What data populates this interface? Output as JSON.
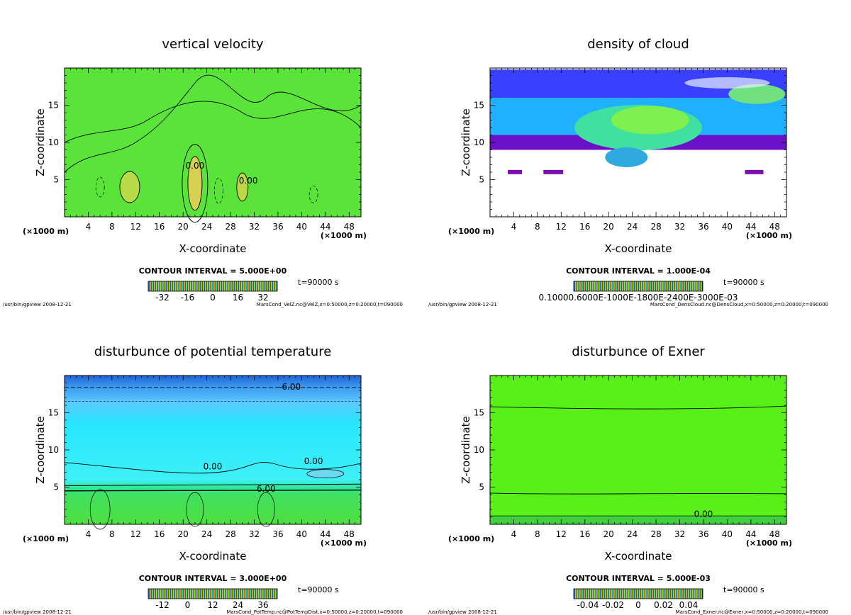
{
  "chart_data": [
    {
      "type": "heatmap",
      "title": "vertical velocity",
      "xlabel": "X-coordinate",
      "ylabel": "Z-coordinate",
      "x_unit": "(×1000 m)",
      "xlim": [
        0,
        50
      ],
      "ylim": [
        0,
        20
      ],
      "x_ticks": [
        4,
        8,
        12,
        16,
        20,
        24,
        28,
        32,
        36,
        40,
        44,
        48
      ],
      "y_ticks": [
        5,
        10,
        15
      ],
      "contour_interval": "CONTOUR INTERVAL = 5.000E+00",
      "time": "t=90000 s",
      "colorbar_ticks": [
        "-32",
        "-16",
        "0",
        "16",
        "32"
      ],
      "contour_labels": [
        "0.00",
        "0.00"
      ],
      "footer_left": "/usr/bin/gpview  2008-12-21",
      "footer_right": "MarsCond_VelZ.nc@VelZ,x=0:50000,z=0:20000,t=090000"
    },
    {
      "type": "heatmap",
      "title": "density of cloud",
      "xlabel": "X-coordinate",
      "ylabel": "Z-coordinate",
      "x_unit": "(×1000 m)",
      "xlim": [
        0,
        50
      ],
      "ylim": [
        0,
        20
      ],
      "x_ticks": [
        4,
        8,
        12,
        16,
        20,
        24,
        28,
        32,
        36,
        40,
        44,
        48
      ],
      "y_ticks": [
        5,
        10,
        15
      ],
      "contour_interval": "CONTOUR INTERVAL = 1.000E-04",
      "time": "t=90000 s",
      "colorbar_ticks": [
        "0.10000.6000E-1000E-1800E-2400E-3000E-03"
      ],
      "contour_labels": [],
      "footer_left": "/usr/bin/gpview  2008-12-21",
      "footer_right": "MarsCond_DensCloud.nc@DensCloud,x=0:50000,z=0:20000,t=090000"
    },
    {
      "type": "heatmap",
      "title": "disturbunce of potential temperature",
      "xlabel": "X-coordinate",
      "ylabel": "Z-coordinate",
      "x_unit": "(×1000 m)",
      "xlim": [
        0,
        50
      ],
      "ylim": [
        0,
        20
      ],
      "x_ticks": [
        4,
        8,
        12,
        16,
        20,
        24,
        28,
        32,
        36,
        40,
        44,
        48
      ],
      "y_ticks": [
        5,
        10,
        15
      ],
      "contour_interval": "CONTOUR INTERVAL = 3.000E+00",
      "time": "t=90000 s",
      "colorbar_ticks": [
        "-12",
        "0",
        "12",
        "24",
        "36"
      ],
      "contour_labels": [
        "-6.00",
        "0.00",
        "0.00",
        "6.00"
      ],
      "footer_left": "/usr/bin/gpview  2008-12-21",
      "footer_right": "MarsCond_PotTemp.nc@PotTempDist,x=0:50000,z=0:20000,t=090000"
    },
    {
      "type": "heatmap",
      "title": "disturbunce of Exner",
      "xlabel": "X-coordinate",
      "ylabel": "Z-coordinate",
      "x_unit": "(×1000 m)",
      "xlim": [
        0,
        50
      ],
      "ylim": [
        0,
        20
      ],
      "x_ticks": [
        4,
        8,
        12,
        16,
        20,
        24,
        28,
        32,
        36,
        40,
        44,
        48
      ],
      "y_ticks": [
        5,
        10,
        15
      ],
      "contour_interval": "CONTOUR INTERVAL = 5.000E-03",
      "time": "t=90000 s",
      "colorbar_ticks": [
        "-0.04",
        "-0.02",
        "0",
        "0.02",
        "0.04"
      ],
      "contour_labels": [
        "0.00"
      ],
      "footer_left": "/usr/bin/gpview  2008-12-21",
      "footer_right": "MarsCond_Exner.nc@Exner,x=0:50000,z=0:20000,t=090000"
    }
  ]
}
